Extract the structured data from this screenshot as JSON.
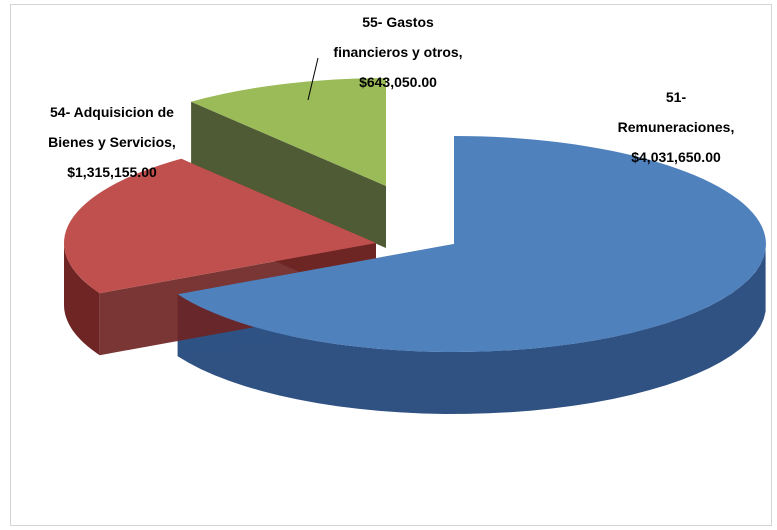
{
  "chart_data": {
    "type": "pie",
    "title": "",
    "slices": [
      {
        "name": "51- Remuneraciones",
        "value": 4031650.0,
        "label_lines": [
          "51-",
          "Remuneraciones,",
          "$4,031,650.00"
        ],
        "color_top": "#4f81bd",
        "color_side": "#2f5283"
      },
      {
        "name": "54- Adquisicion de Bienes y Servicios",
        "value": 1315155.0,
        "label_lines": [
          "54- Adquisicion de",
          "Bienes y Servicios,",
          "$1,315,155.00"
        ],
        "color_top": "#c0504d",
        "color_side": "#6e2524"
      },
      {
        "name": "55- Gastos financieros y otros",
        "value": 643050.0,
        "label_lines": [
          "55- Gastos",
          "financieros y otros,",
          "$643,050.00"
        ],
        "color_top": "#9bbb59",
        "color_side": "#3f4d24"
      }
    ],
    "legend": "none",
    "style": "3d-exploded"
  }
}
